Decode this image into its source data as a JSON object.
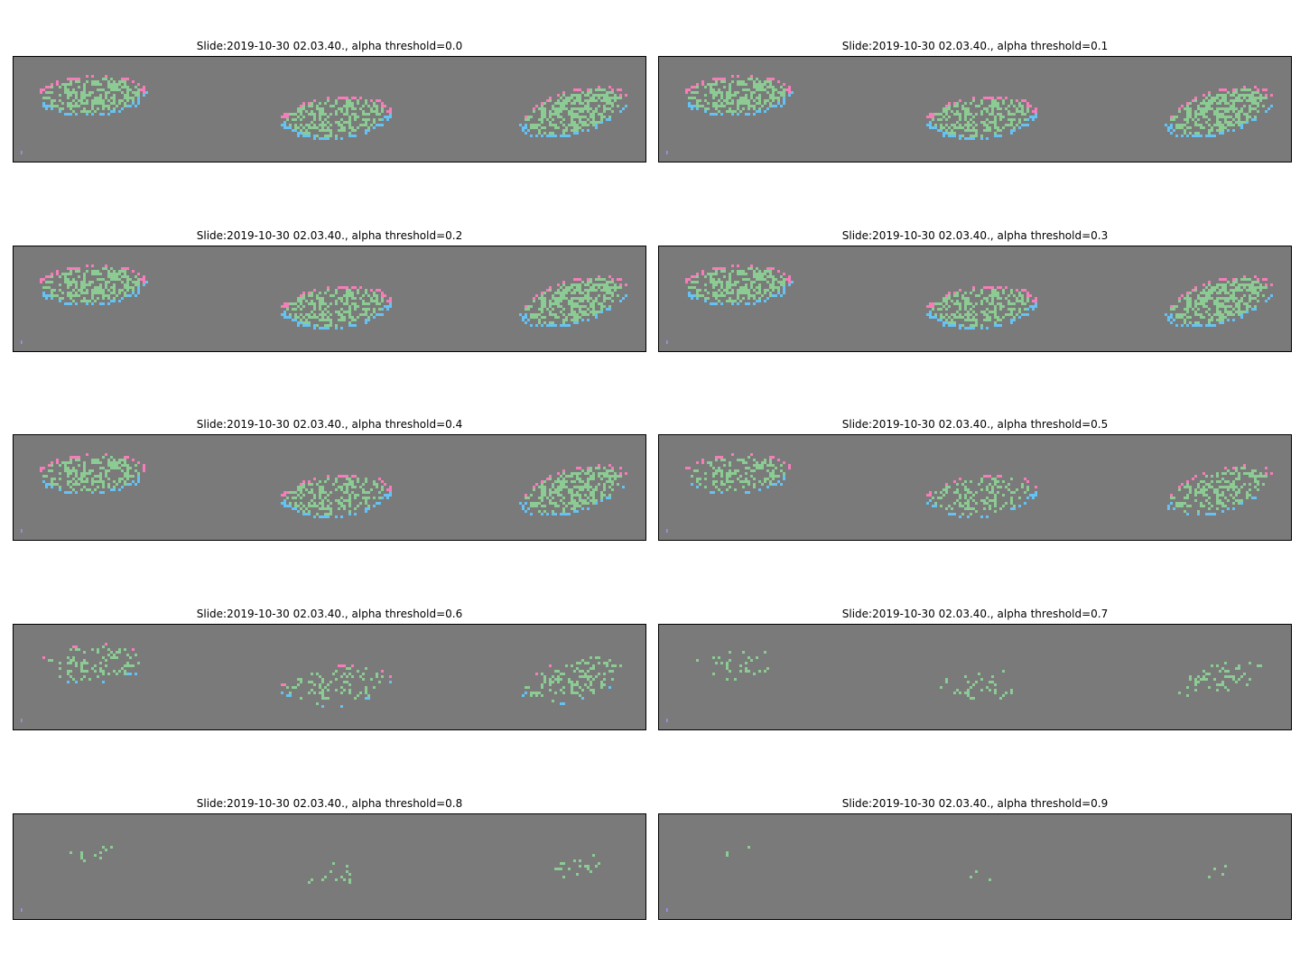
{
  "figure": {
    "background": "#ffffff",
    "panel_background": "#7a7a7a",
    "frame_color": "#000000"
  },
  "palette": [
    "#8ccb93",
    "#66c2f2",
    "#f57eb8",
    "#eef088",
    "#f2a35e",
    "#a98df2"
  ],
  "chart_data": [
    {
      "type": "heatmap",
      "title": "Slide:2019-10-30 02.03.40., alpha threshold=0.0",
      "alpha_threshold": 0.0,
      "grid": false,
      "axes": "off"
    },
    {
      "type": "heatmap",
      "title": "Slide:2019-10-30 02.03.40., alpha threshold=0.1",
      "alpha_threshold": 0.1,
      "grid": false,
      "axes": "off"
    },
    {
      "type": "heatmap",
      "title": "Slide:2019-10-30 02.03.40., alpha threshold=0.2",
      "alpha_threshold": 0.2,
      "grid": false,
      "axes": "off"
    },
    {
      "type": "heatmap",
      "title": "Slide:2019-10-30 02.03.40., alpha threshold=0.3",
      "alpha_threshold": 0.3,
      "grid": false,
      "axes": "off"
    },
    {
      "type": "heatmap",
      "title": "Slide:2019-10-30 02.03.40., alpha threshold=0.4",
      "alpha_threshold": 0.4,
      "grid": false,
      "axes": "off"
    },
    {
      "type": "heatmap",
      "title": "Slide:2019-10-30 02.03.40., alpha threshold=0.5",
      "alpha_threshold": 0.5,
      "grid": false,
      "axes": "off"
    },
    {
      "type": "heatmap",
      "title": "Slide:2019-10-30 02.03.40., alpha threshold=0.6",
      "alpha_threshold": 0.6,
      "grid": false,
      "axes": "off"
    },
    {
      "type": "heatmap",
      "title": "Slide:2019-10-30 02.03.40., alpha threshold=0.7",
      "alpha_threshold": 0.7,
      "grid": false,
      "axes": "off"
    },
    {
      "type": "heatmap",
      "title": "Slide:2019-10-30 02.03.40., alpha threshold=0.8",
      "alpha_threshold": 0.8,
      "grid": false,
      "axes": "off"
    },
    {
      "type": "heatmap",
      "title": "Slide:2019-10-30 02.03.40., alpha threshold=0.9",
      "alpha_threshold": 0.9,
      "grid": false,
      "axes": "off"
    }
  ]
}
